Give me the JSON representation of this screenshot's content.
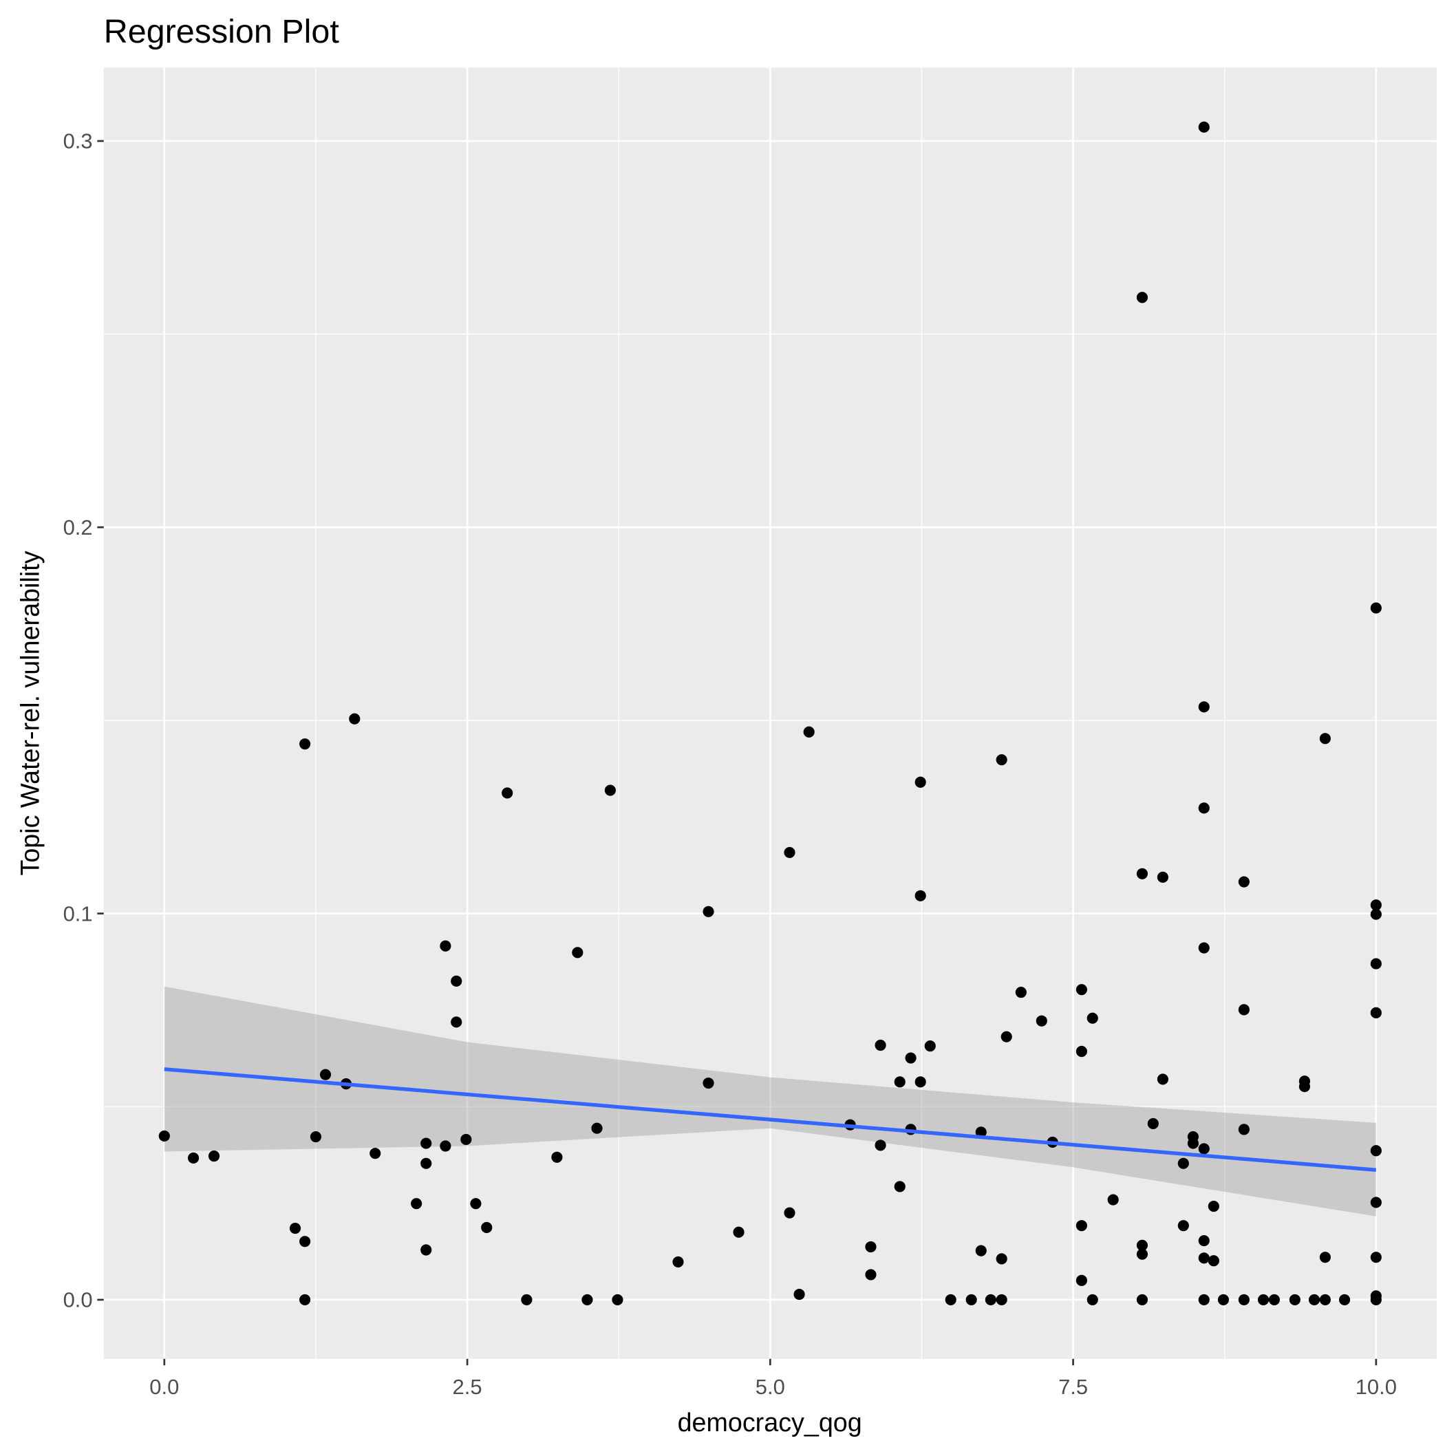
{
  "chart_data": {
    "type": "scatter",
    "title": "Regression Plot",
    "xlabel": "democracy_qog",
    "ylabel": "Topic Water-rel. vulnerability",
    "xlim": [
      -0.5,
      10.5
    ],
    "ylim": [
      -0.0153,
      0.319
    ],
    "xticks": [
      0,
      2.5,
      5,
      7.5,
      10
    ],
    "xtick_labels": [
      "0.0",
      "2.5",
      "5.0",
      "7.5",
      "10.0"
    ],
    "yticks": [
      0,
      0.1,
      0.2,
      0.3
    ],
    "ytick_labels": [
      "0.0",
      "0.1",
      "0.2",
      "0.3"
    ],
    "grid": true,
    "colors": {
      "panel": "#EBEBEB",
      "grid": "#FFFFFF",
      "point": "#000000",
      "line": "#3366FF",
      "ribbon": "#999999"
    },
    "points": [
      [
        0,
        0.0424
      ],
      [
        0.24,
        0.0367
      ],
      [
        0.41,
        0.0372
      ],
      [
        1.08,
        0.0185
      ],
      [
        1.16,
        0.0151
      ],
      [
        1.16,
        0
      ],
      [
        1.16,
        0.1439
      ],
      [
        1.25,
        0.0422
      ],
      [
        1.33,
        0.0583
      ],
      [
        1.5,
        0.0559
      ],
      [
        1.57,
        0.1504
      ],
      [
        1.74,
        0.0379
      ],
      [
        2.08,
        0.0249
      ],
      [
        2.16,
        0.0405
      ],
      [
        2.16,
        0.0353
      ],
      [
        2.16,
        0.0129
      ],
      [
        2.32,
        0.0916
      ],
      [
        2.32,
        0.0398
      ],
      [
        2.41,
        0.0825
      ],
      [
        2.41,
        0.0719
      ],
      [
        2.49,
        0.0415
      ],
      [
        2.57,
        0.0249
      ],
      [
        2.66,
        0.0187
      ],
      [
        2.83,
        0.1312
      ],
      [
        2.99,
        0
      ],
      [
        3.24,
        0.0369
      ],
      [
        3.41,
        0.0899
      ],
      [
        3.49,
        0
      ],
      [
        3.57,
        0.0444
      ],
      [
        3.68,
        0.1319
      ],
      [
        3.74,
        0
      ],
      [
        4.24,
        0.0098
      ],
      [
        4.49,
        0.1005
      ],
      [
        4.49,
        0.0561
      ],
      [
        4.74,
        0.0175
      ],
      [
        5.16,
        0.0225
      ],
      [
        5.16,
        0.1158
      ],
      [
        5.24,
        0.0014
      ],
      [
        5.32,
        0.147
      ],
      [
        5.66,
        0.0453
      ],
      [
        5.83,
        0.0137
      ],
      [
        5.83,
        0.0065
      ],
      [
        5.91,
        0.0659
      ],
      [
        5.91,
        0.04
      ],
      [
        6.07,
        0.0564
      ],
      [
        6.07,
        0.0293
      ],
      [
        6.16,
        0.0626
      ],
      [
        6.16,
        0.0441
      ],
      [
        6.24,
        0.134
      ],
      [
        6.24,
        0.1046
      ],
      [
        6.24,
        0.0564
      ],
      [
        6.32,
        0.0657
      ],
      [
        6.49,
        0
      ],
      [
        6.66,
        0
      ],
      [
        6.74,
        0.0434
      ],
      [
        6.74,
        0.0127
      ],
      [
        6.82,
        0
      ],
      [
        6.91,
        0.1398
      ],
      [
        6.91,
        0.0106
      ],
      [
        6.91,
        0
      ],
      [
        6.95,
        0.0681
      ],
      [
        7.07,
        0.0796
      ],
      [
        7.24,
        0.0722
      ],
      [
        7.33,
        0.0408
      ],
      [
        7.57,
        0.0803
      ],
      [
        7.57,
        0.0643
      ],
      [
        7.57,
        0.0192
      ],
      [
        7.57,
        0.005
      ],
      [
        7.66,
        0.0729
      ],
      [
        7.66,
        0
      ],
      [
        7.83,
        0.0259
      ],
      [
        8.07,
        0.2595
      ],
      [
        8.07,
        0.1103
      ],
      [
        8.07,
        0.0141
      ],
      [
        8.07,
        0.0118
      ],
      [
        8.07,
        0
      ],
      [
        8.16,
        0.0456
      ],
      [
        8.24,
        0.1094
      ],
      [
        8.24,
        0.0571
      ],
      [
        8.41,
        0.0353
      ],
      [
        8.41,
        0.0192
      ],
      [
        8.49,
        0.0422
      ],
      [
        8.49,
        0.0405
      ],
      [
        8.58,
        0.3036
      ],
      [
        8.58,
        0.1535
      ],
      [
        8.58,
        0.1273
      ],
      [
        8.58,
        0.0911
      ],
      [
        8.58,
        0.0391
      ],
      [
        8.58,
        0.0153
      ],
      [
        8.58,
        0.0108
      ],
      [
        8.58,
        0
      ],
      [
        8.66,
        0.0242
      ],
      [
        8.66,
        0.0101
      ],
      [
        8.74,
        0
      ],
      [
        8.91,
        0.1082
      ],
      [
        8.91,
        0.0751
      ],
      [
        8.91,
        0.0441
      ],
      [
        8.91,
        0
      ],
      [
        9.07,
        0
      ],
      [
        9.16,
        0
      ],
      [
        9.33,
        0
      ],
      [
        9.41,
        0.0566
      ],
      [
        9.41,
        0.0552
      ],
      [
        9.49,
        0
      ],
      [
        9.58,
        0.1453
      ],
      [
        9.58,
        0.011
      ],
      [
        9.58,
        0
      ],
      [
        9.74,
        0
      ],
      [
        10,
        0.1791
      ],
      [
        10,
        0.1022
      ],
      [
        10,
        0.0998
      ],
      [
        10,
        0.087
      ],
      [
        10,
        0.0743
      ],
      [
        10,
        0.0386
      ],
      [
        10,
        0.0252
      ],
      [
        10,
        0.011
      ],
      [
        10,
        0.001
      ],
      [
        10,
        0
      ]
    ],
    "regression_line": {
      "x": [
        0,
        10
      ],
      "y": [
        0.0597,
        0.0336
      ]
    },
    "confidence_band": {
      "x": [
        0,
        2.5,
        5,
        7.5,
        10
      ],
      "lower": [
        0.0384,
        0.0398,
        0.0444,
        0.0343,
        0.0216
      ],
      "upper": [
        0.0811,
        0.0667,
        0.0576,
        0.0511,
        0.0458
      ]
    }
  }
}
